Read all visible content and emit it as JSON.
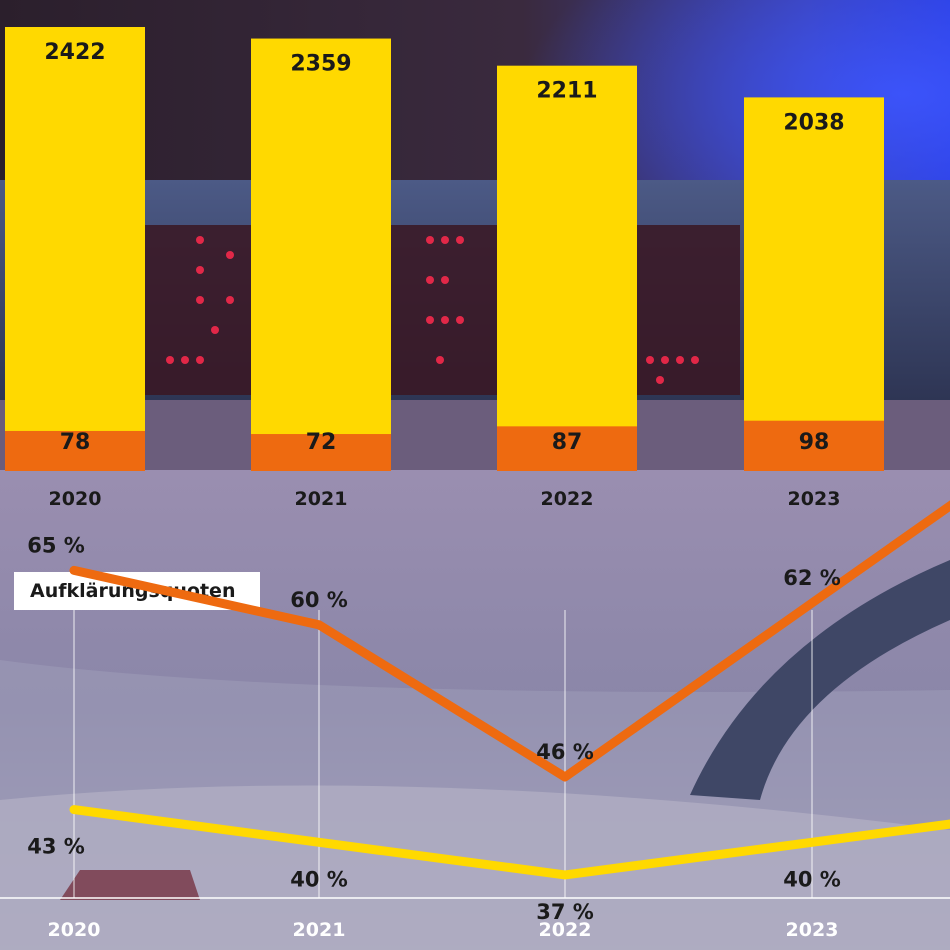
{
  "chart_data": [
    {
      "type": "bar",
      "categories": [
        "2020",
        "2021",
        "2022",
        "2023"
      ],
      "series": [
        {
          "values": [
            2422,
            2359,
            2211,
            2038
          ],
          "color": "#FFD900"
        },
        {
          "values": [
            78,
            72,
            87,
            98
          ],
          "color": "#EE6A10"
        }
      ],
      "ylim": [
        0,
        2500
      ]
    },
    {
      "type": "line",
      "title": "Aufklärungsquoten",
      "categories": [
        "2020",
        "2021",
        "2022",
        "2023"
      ],
      "series": [
        {
          "values": [
            65,
            60,
            46,
            62
          ],
          "labels": [
            "65 %",
            "60 %",
            "46 %",
            "62 %"
          ],
          "color": "#EE6A10"
        },
        {
          "values": [
            43,
            40,
            37,
            40
          ],
          "labels": [
            "43 %",
            "40 %",
            "37 %",
            "40 %"
          ],
          "color": "#FFD900"
        }
      ],
      "ylim": [
        30,
        70
      ],
      "gridlines": "vertical"
    }
  ]
}
